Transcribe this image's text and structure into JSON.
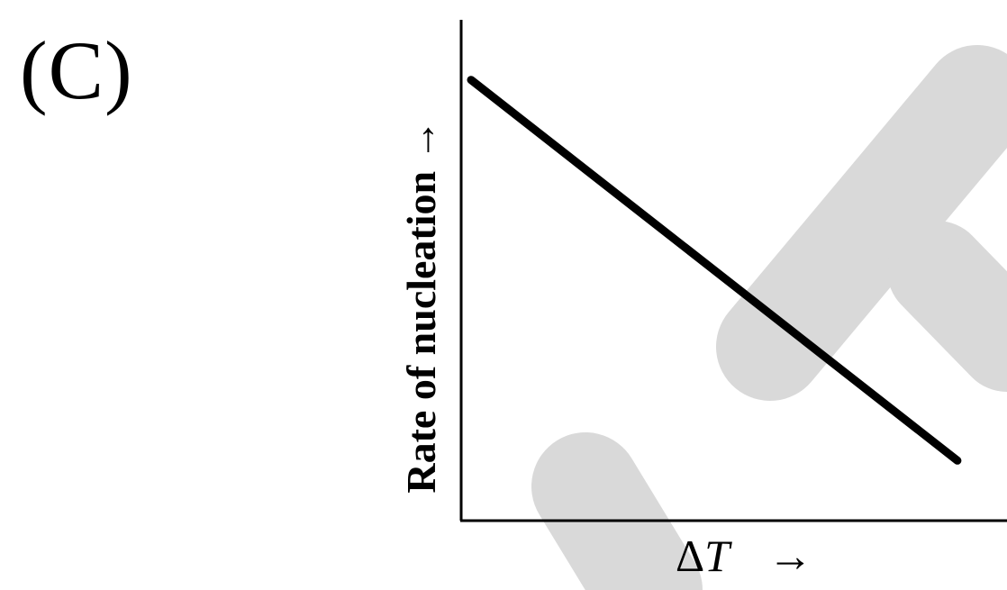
{
  "option_label": "(C)",
  "watermark_color": "#d9d9d9",
  "chart_data": {
    "type": "line",
    "title": "",
    "xlabel": "ΔT",
    "xlabel_symbol": "Δ",
    "xlabel_variable": "T",
    "ylabel": "Rate of nucleation",
    "axis_arrow": "→",
    "series": [
      {
        "x": [
          0.02,
          1.0
        ],
        "y": [
          0.88,
          0.12
        ]
      }
    ],
    "xlim": [
      0,
      1.1
    ],
    "ylim": [
      0,
      1
    ],
    "grid": false,
    "line_color": "#000000"
  }
}
